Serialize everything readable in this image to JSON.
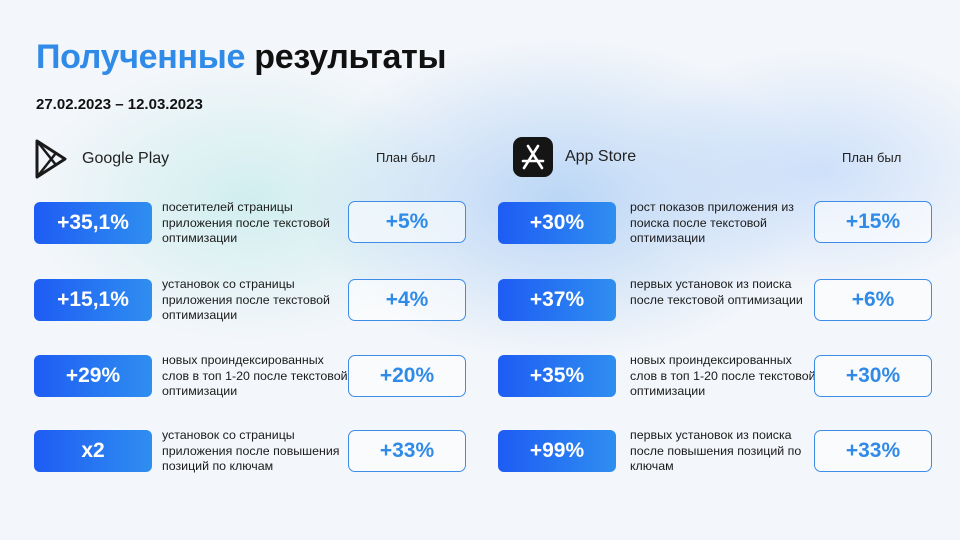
{
  "title": {
    "accent": "Полученные",
    "rest": "результаты"
  },
  "date_range": "27.02.2023 – 12.03.2023",
  "colors": {
    "accent": "#2f8ae8",
    "badge_start": "#1e5cf4",
    "badge_end": "#2f8ef0"
  },
  "google_play": {
    "store_name": "Google Play",
    "icon": "google-play-icon",
    "plan_label": "План был",
    "rows": [
      {
        "result": "+35,1%",
        "description": "посетителей страницы приложения после текстовой оптимизации",
        "plan": "+5%"
      },
      {
        "result": "+15,1%",
        "description": "установок со страницы приложения после текстовой оптимизации",
        "plan": "+4%"
      },
      {
        "result": "+29%",
        "description": "новых проиндексированных слов в топ 1-20 после текстовой оптимизации",
        "plan": "+20%"
      },
      {
        "result": "x2",
        "description": "установок со страницы приложения после повышения позиций по ключам",
        "plan": "+33%"
      }
    ]
  },
  "app_store": {
    "store_name": "App Store",
    "icon": "app-store-icon",
    "plan_label": "План был",
    "rows": [
      {
        "result": "+30%",
        "description": "рост показов приложения из поиска после текстовой оптимизации",
        "plan": "+15%"
      },
      {
        "result": "+37%",
        "description": "первых установок из поиска после текстовой оптимизации",
        "plan": "+6%"
      },
      {
        "result": "+35%",
        "description": "новых проиндексированных слов в топ 1-20 после текстовой оптимизации",
        "plan": "+30%"
      },
      {
        "result": "+99%",
        "description": "первых установок из поиска после повышения позиций по ключам",
        "plan": "+33%"
      }
    ]
  }
}
